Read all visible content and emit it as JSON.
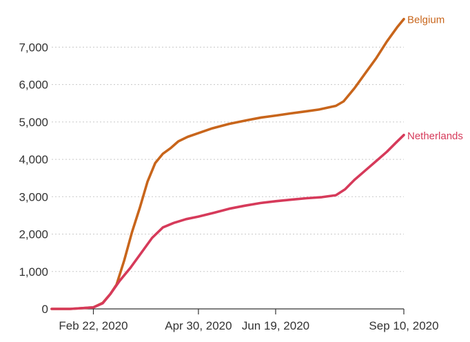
{
  "chart_data": {
    "type": "line",
    "title": "",
    "xlabel": "",
    "ylabel": "",
    "x_type": "date",
    "x_range": [
      "2020-01-26",
      "2020-09-10"
    ],
    "ylim": [
      0,
      7800
    ],
    "y_ticks": [
      0,
      1000,
      2000,
      3000,
      4000,
      5000,
      6000,
      7000
    ],
    "y_tick_labels": [
      "0",
      "1,000",
      "2,000",
      "3,000",
      "4,000",
      "5,000",
      "6,000",
      "7,000"
    ],
    "x_ticks": [
      "2020-02-22",
      "2020-04-30",
      "2020-06-19",
      "2020-09-10"
    ],
    "x_tick_labels": [
      "Feb 22, 2020",
      "Apr 30, 2020",
      "Jun 19, 2020",
      "Sep 10, 2020"
    ],
    "grid": "horizontal-dashed",
    "legend": "direct labels at line ends",
    "series": [
      {
        "name": "Belgium",
        "color": "#c8651b",
        "points": [
          [
            "2020-01-26",
            0
          ],
          [
            "2020-02-07",
            0
          ],
          [
            "2020-02-22",
            40
          ],
          [
            "2020-02-28",
            160
          ],
          [
            "2020-03-04",
            400
          ],
          [
            "2020-03-08",
            650
          ],
          [
            "2020-03-13",
            1300
          ],
          [
            "2020-03-18",
            2050
          ],
          [
            "2020-03-23",
            2700
          ],
          [
            "2020-03-28",
            3400
          ],
          [
            "2020-04-02",
            3900
          ],
          [
            "2020-04-07",
            4150
          ],
          [
            "2020-04-12",
            4300
          ],
          [
            "2020-04-17",
            4480
          ],
          [
            "2020-04-23",
            4600
          ],
          [
            "2020-04-30",
            4700
          ],
          [
            "2020-05-09",
            4830
          ],
          [
            "2020-05-20",
            4950
          ],
          [
            "2020-06-01",
            5050
          ],
          [
            "2020-06-10",
            5120
          ],
          [
            "2020-06-19",
            5170
          ],
          [
            "2020-06-29",
            5230
          ],
          [
            "2020-07-08",
            5280
          ],
          [
            "2020-07-17",
            5330
          ],
          [
            "2020-07-28",
            5430
          ],
          [
            "2020-08-02",
            5550
          ],
          [
            "2020-08-09",
            5900
          ],
          [
            "2020-08-16",
            6300
          ],
          [
            "2020-08-23",
            6700
          ],
          [
            "2020-08-30",
            7150
          ],
          [
            "2020-09-06",
            7550
          ],
          [
            "2020-09-10",
            7750
          ]
        ]
      },
      {
        "name": "Netherlands",
        "color": "#d63a5a",
        "points": [
          [
            "2020-01-26",
            0
          ],
          [
            "2020-02-07",
            0
          ],
          [
            "2020-02-22",
            40
          ],
          [
            "2020-02-28",
            150
          ],
          [
            "2020-03-04",
            400
          ],
          [
            "2020-03-10",
            750
          ],
          [
            "2020-03-17",
            1100
          ],
          [
            "2020-03-24",
            1500
          ],
          [
            "2020-03-31",
            1900
          ],
          [
            "2020-04-07",
            2180
          ],
          [
            "2020-04-14",
            2300
          ],
          [
            "2020-04-22",
            2400
          ],
          [
            "2020-04-30",
            2470
          ],
          [
            "2020-05-10",
            2570
          ],
          [
            "2020-05-20",
            2680
          ],
          [
            "2020-05-30",
            2760
          ],
          [
            "2020-06-09",
            2830
          ],
          [
            "2020-06-19",
            2880
          ],
          [
            "2020-06-29",
            2920
          ],
          [
            "2020-07-09",
            2960
          ],
          [
            "2020-07-19",
            2990
          ],
          [
            "2020-07-28",
            3040
          ],
          [
            "2020-08-03",
            3200
          ],
          [
            "2020-08-09",
            3450
          ],
          [
            "2020-08-16",
            3700
          ],
          [
            "2020-08-23",
            3950
          ],
          [
            "2020-08-30",
            4200
          ],
          [
            "2020-09-05",
            4450
          ],
          [
            "2020-09-10",
            4650
          ]
        ]
      }
    ]
  }
}
